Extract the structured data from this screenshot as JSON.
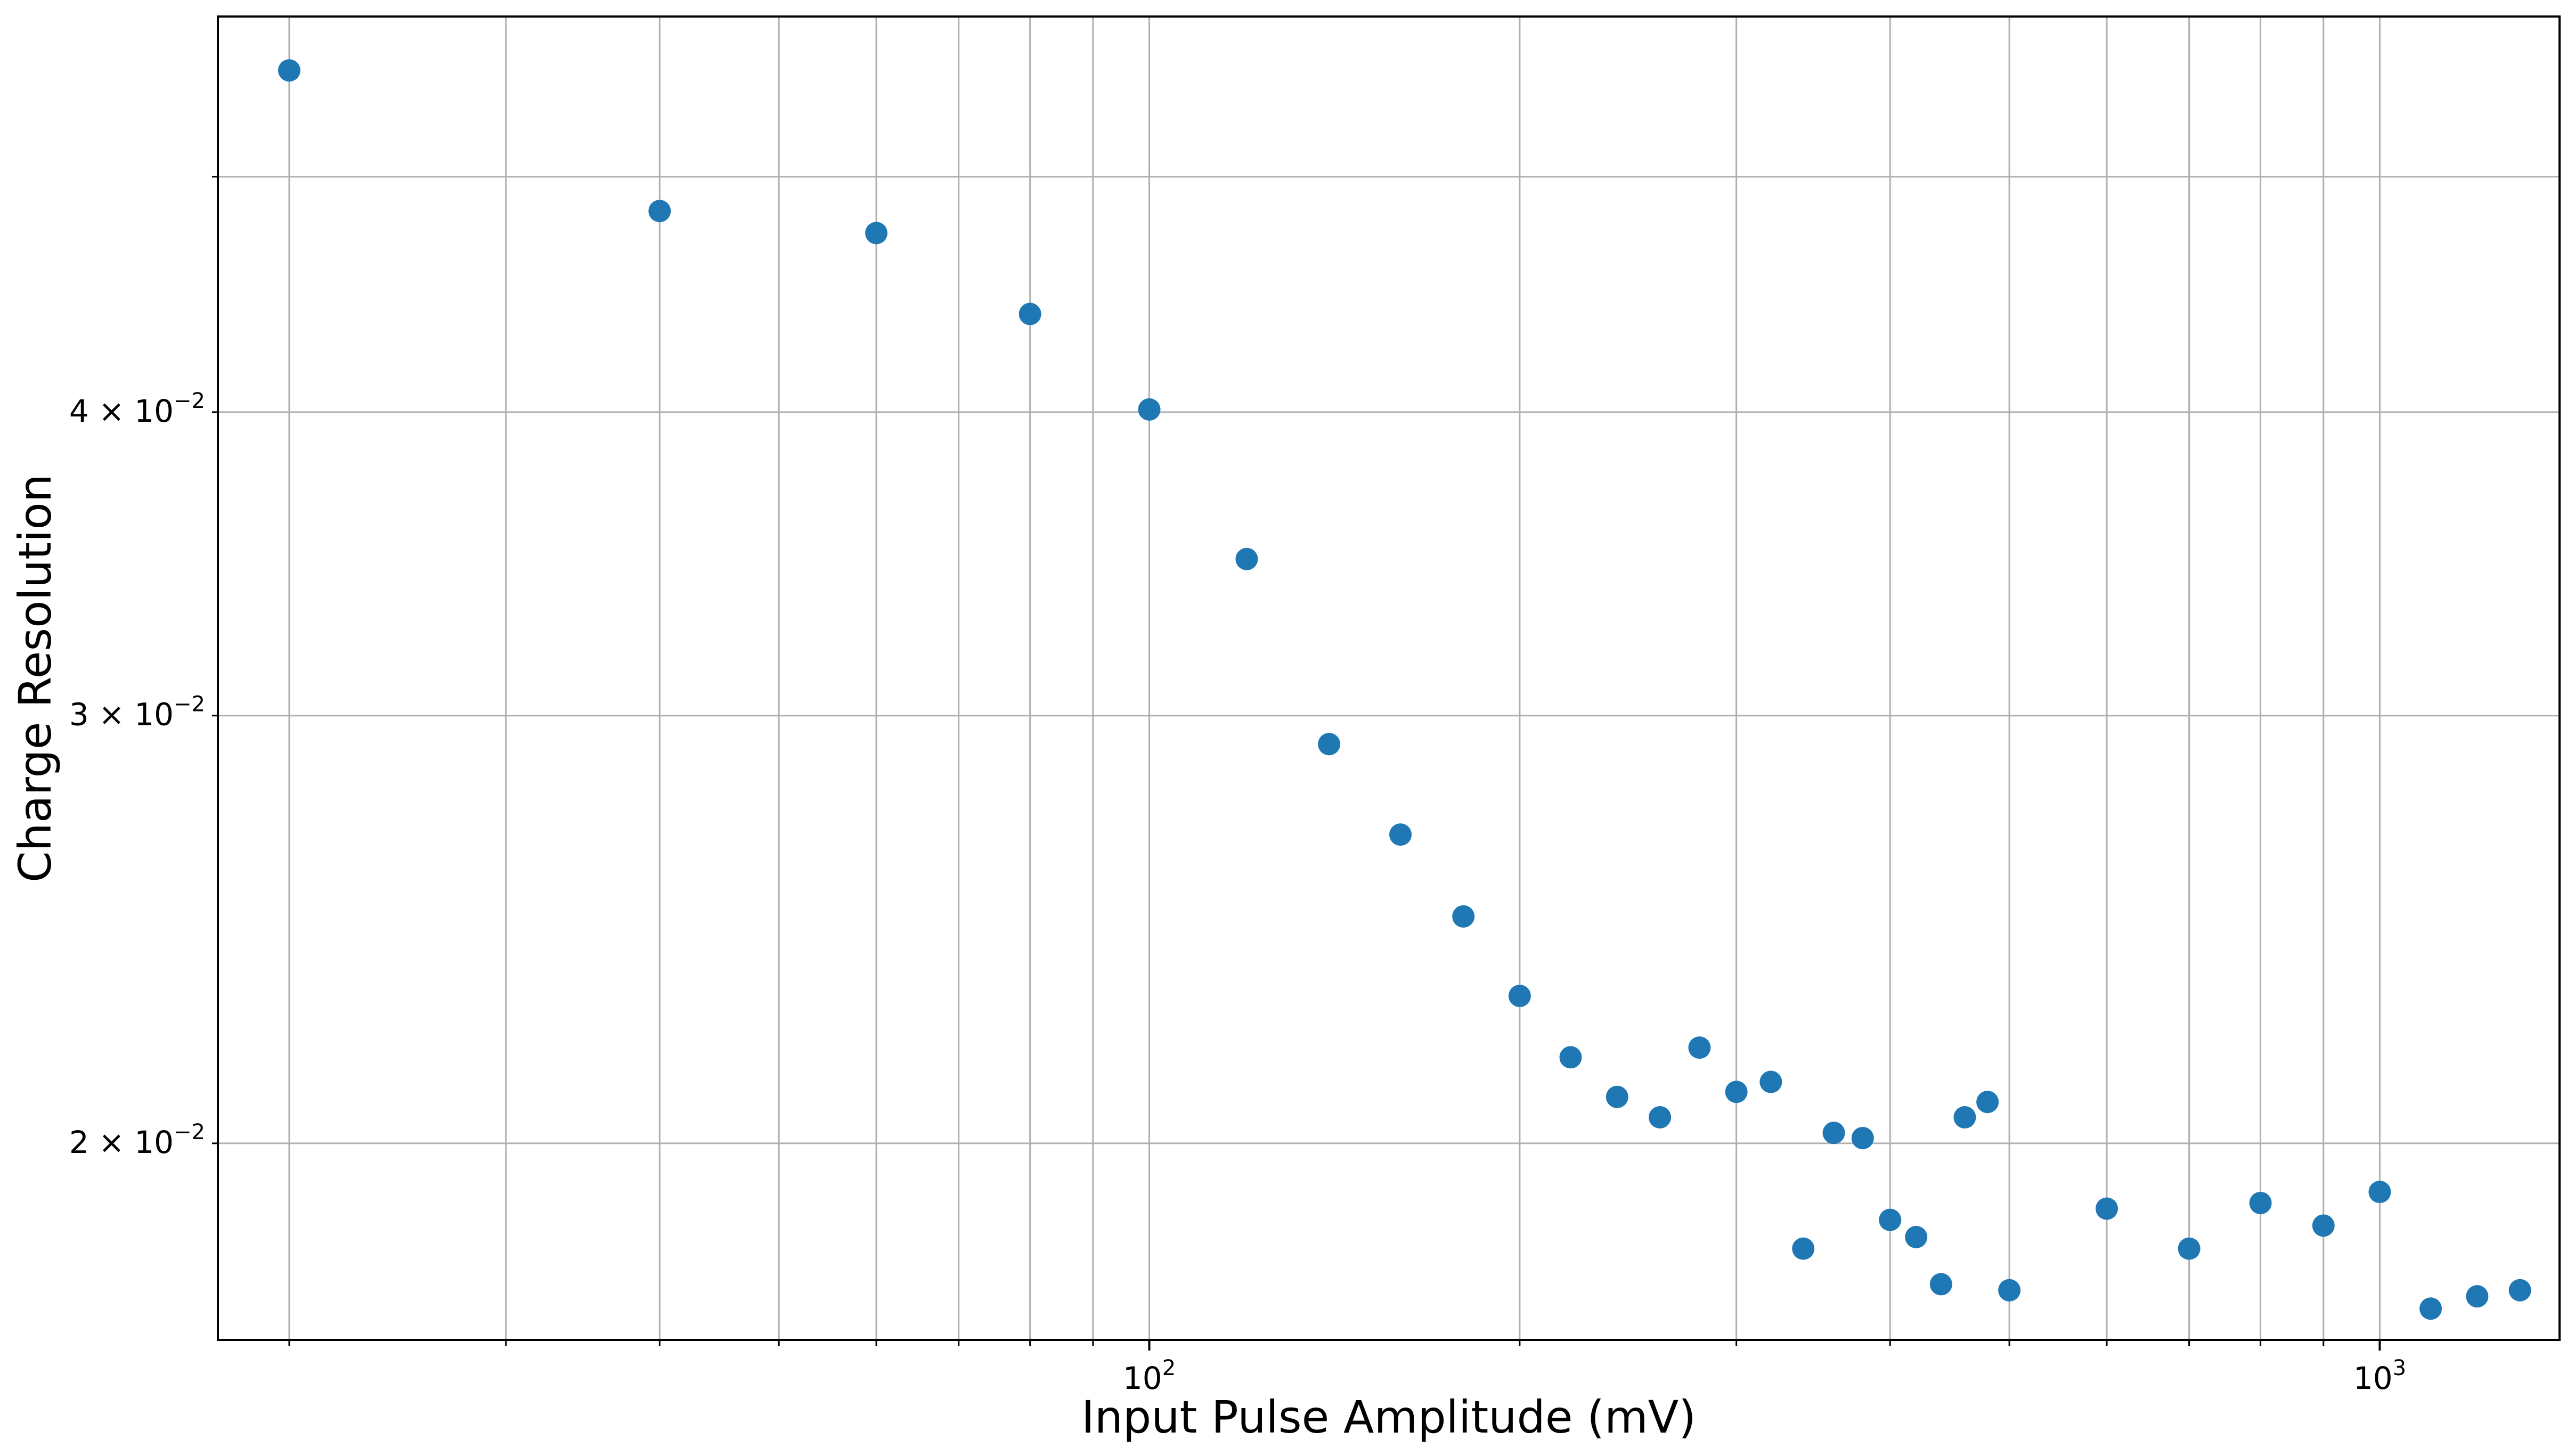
{
  "chart_data": {
    "type": "scatter",
    "title": "",
    "xlabel": "Input Pulse Amplitude (mV)",
    "ylabel": "Charge Resolution",
    "x_scale": "log",
    "y_scale": "log",
    "xlim": [
      17.5,
      1400
    ],
    "ylim": [
      0.0166,
      0.0582
    ],
    "grid": true,
    "grid_includes_minor": true,
    "legend": "none",
    "marker_color": "#1f77b4",
    "x_major_tick_labels": [
      {
        "value": 100,
        "base": "10",
        "exp": "2"
      },
      {
        "value": 1000,
        "base": "10",
        "exp": "3"
      }
    ],
    "y_tick_labels": [
      {
        "value": 0.02,
        "mantissa": "2",
        "base": "10",
        "exp": "−2"
      },
      {
        "value": 0.03,
        "mantissa": "3",
        "base": "10",
        "exp": "−2"
      },
      {
        "value": 0.04,
        "mantissa": "4",
        "base": "10",
        "exp": "−2"
      }
    ],
    "points": [
      {
        "x": 20,
        "y": 0.0553
      },
      {
        "x": 40,
        "y": 0.0484
      },
      {
        "x": 60,
        "y": 0.0474
      },
      {
        "x": 80,
        "y": 0.0439
      },
      {
        "x": 100,
        "y": 0.0401
      },
      {
        "x": 120,
        "y": 0.0348
      },
      {
        "x": 140,
        "y": 0.0292
      },
      {
        "x": 160,
        "y": 0.0268
      },
      {
        "x": 180,
        "y": 0.0248
      },
      {
        "x": 200,
        "y": 0.023
      },
      {
        "x": 220,
        "y": 0.0217
      },
      {
        "x": 240,
        "y": 0.0209
      },
      {
        "x": 260,
        "y": 0.0205
      },
      {
        "x": 280,
        "y": 0.0219
      },
      {
        "x": 300,
        "y": 0.021
      },
      {
        "x": 320,
        "y": 0.0212
      },
      {
        "x": 340,
        "y": 0.0181
      },
      {
        "x": 360,
        "y": 0.0202
      },
      {
        "x": 380,
        "y": 0.0201
      },
      {
        "x": 400,
        "y": 0.0186
      },
      {
        "x": 420,
        "y": 0.0183
      },
      {
        "x": 440,
        "y": 0.0175
      },
      {
        "x": 460,
        "y": 0.0205
      },
      {
        "x": 480,
        "y": 0.0208
      },
      {
        "x": 500,
        "y": 0.0174
      },
      {
        "x": 600,
        "y": 0.0188
      },
      {
        "x": 700,
        "y": 0.0181
      },
      {
        "x": 800,
        "y": 0.0189
      },
      {
        "x": 900,
        "y": 0.0185
      },
      {
        "x": 1000,
        "y": 0.0191
      },
      {
        "x": 1100,
        "y": 0.0171
      },
      {
        "x": 1200,
        "y": 0.0173
      },
      {
        "x": 1300,
        "y": 0.0174
      }
    ]
  }
}
